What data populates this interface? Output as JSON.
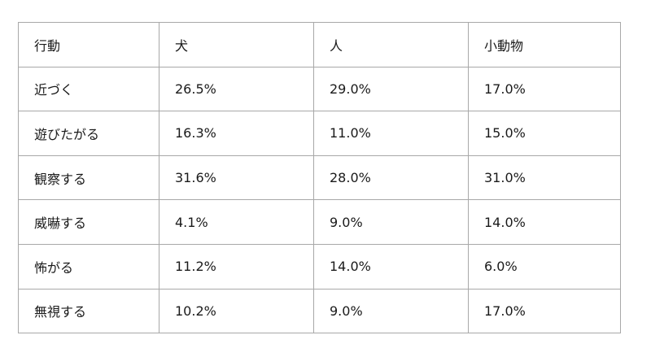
{
  "table": {
    "headers": [
      "行動",
      "犬",
      "人",
      "小動物"
    ],
    "rows": [
      [
        "近づく",
        "26.5%",
        "29.0%",
        "17.0%"
      ],
      [
        "遊びたがる",
        "16.3%",
        "11.0%",
        "15.0%"
      ],
      [
        "観察する",
        "31.6%",
        "28.0%",
        "31.0%"
      ],
      [
        "威嚇する",
        "4.1%",
        "9.0%",
        "14.0%"
      ],
      [
        "怖がる",
        "11.2%",
        "14.0%",
        "6.0%"
      ],
      [
        "無視する",
        "10.2%",
        "9.0%",
        "17.0%"
      ]
    ]
  },
  "chart_data": {
    "type": "table",
    "title": "",
    "columns": [
      "行動",
      "犬",
      "人",
      "小動物"
    ],
    "categories": [
      "近づく",
      "遊びたがる",
      "観察する",
      "威嚇する",
      "怖がる",
      "無視する"
    ],
    "series": [
      {
        "name": "犬",
        "values": [
          26.5,
          16.3,
          31.6,
          4.1,
          11.2,
          10.2
        ]
      },
      {
        "name": "人",
        "values": [
          29.0,
          11.0,
          28.0,
          9.0,
          14.0,
          9.0
        ]
      },
      {
        "name": "小動物",
        "values": [
          17.0,
          15.0,
          31.0,
          14.0,
          6.0,
          17.0
        ]
      }
    ],
    "unit": "%",
    "layout": {
      "grid": true,
      "border_color": "#a8a8a8",
      "background": "#ffffff"
    }
  },
  "colors": {
    "border": "#a8a8a8",
    "text": "#1a1a1a",
    "background": "#ffffff"
  }
}
